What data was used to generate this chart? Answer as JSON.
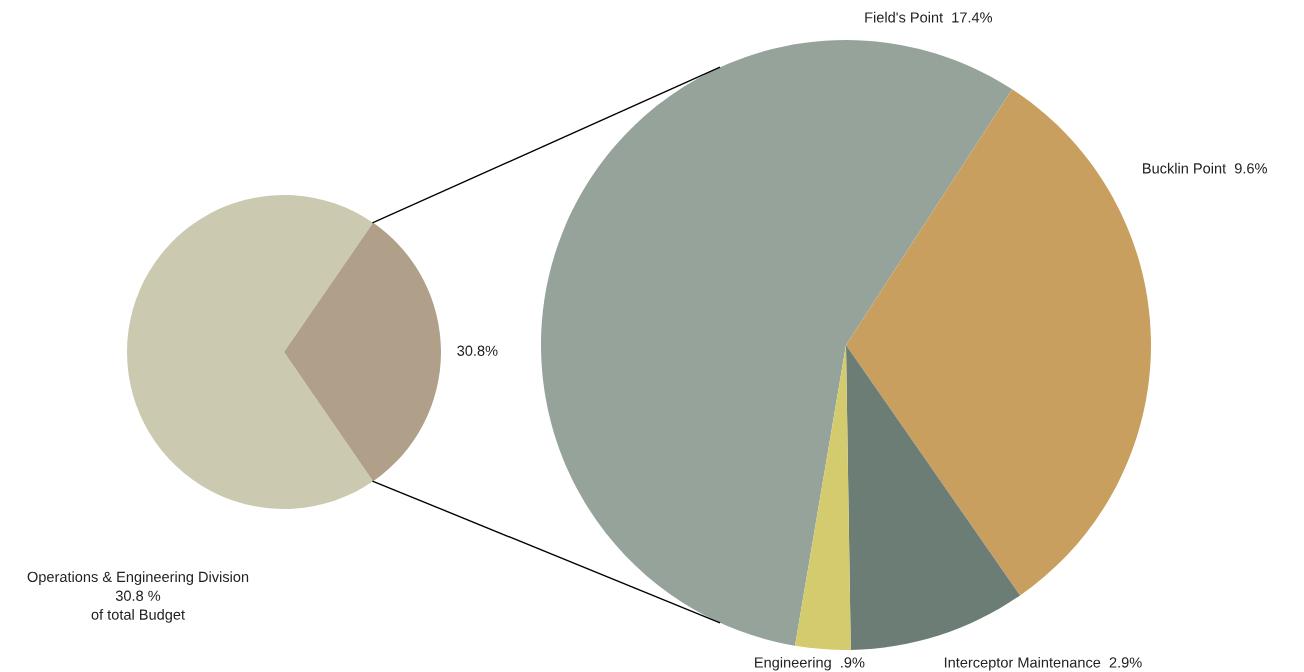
{
  "chart_data": [
    {
      "type": "pie",
      "categories": [
        null,
        null
      ],
      "values": [
        69.2,
        30.8
      ],
      "colors": [
        "#cbc9b0",
        "#b09f89"
      ],
      "value_labels": [
        null,
        "30.8%"
      ],
      "annotations": [
        "Operations & Engineering Division\n30.8 %\nof total Budget"
      ]
    },
    {
      "type": "pie",
      "categories": [
        "Field's Point",
        "Bucklin Point",
        "Interceptor Maintenance",
        "Engineering"
      ],
      "values": [
        17.4,
        9.6,
        2.9,
        0.9
      ],
      "colors": [
        "#95a39b",
        "#c89f5e",
        "#6b7d74",
        "#d3cb6e"
      ],
      "value_labels": [
        "17.4%",
        "9.6%",
        "2.9%",
        ".9%"
      ]
    }
  ]
}
